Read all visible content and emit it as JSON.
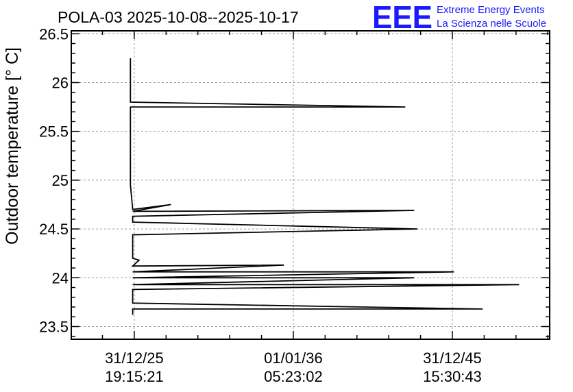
{
  "title": "POLA-03 2025-10-08--2025-10-17",
  "logo": {
    "mark": "EEE",
    "line1": "Extreme Energy Events",
    "line2": "La Scienza nelle Scuole",
    "color": "#1a1aff"
  },
  "chart_data": {
    "type": "line",
    "title": "POLA-03 2025-10-08--2025-10-17",
    "ylabel": "Outdoor temperature [° C]",
    "xlabel": "",
    "ylim": [
      23.37,
      26.53
    ],
    "xlim": [
      -1.98,
      13.06
    ],
    "yticks": [
      23.5,
      24,
      24.5,
      25,
      25.5,
      26,
      26.5
    ],
    "ytick_labels": [
      "23.5",
      "24",
      "24.5",
      "25",
      "25.5",
      "26",
      "26.5"
    ],
    "xticks": [
      0,
      5,
      10
    ],
    "xtick_labels": [
      [
        "31/12/25",
        "19:15:21"
      ],
      [
        "01/01/36",
        "05:23:02"
      ],
      [
        "31/12/45",
        "15:30:43"
      ]
    ],
    "grid": true,
    "series": [
      {
        "color": "#000000",
        "points": [
          [
            -0.12,
            26.25
          ],
          [
            -0.12,
            25.8
          ],
          [
            8.52,
            25.75
          ],
          [
            -0.12,
            25.75
          ],
          [
            -0.12,
            24.95
          ],
          [
            -0.05,
            24.7
          ],
          [
            1.15,
            24.75
          ],
          [
            -0.05,
            24.68
          ],
          [
            8.8,
            24.69
          ],
          [
            -0.05,
            24.63
          ],
          [
            -0.05,
            24.57
          ],
          [
            8.9,
            24.5
          ],
          [
            -0.05,
            24.44
          ],
          [
            -0.05,
            24.2
          ],
          [
            0.15,
            24.18
          ],
          [
            -0.05,
            24.12
          ],
          [
            4.7,
            24.13
          ],
          [
            -0.05,
            24.06
          ],
          [
            10.05,
            24.06
          ],
          [
            -0.05,
            24.0
          ],
          [
            8.8,
            24.0
          ],
          [
            -0.05,
            23.93
          ],
          [
            12.1,
            23.93
          ],
          [
            -0.05,
            23.88
          ],
          [
            -0.05,
            23.74
          ],
          [
            10.95,
            23.68
          ],
          [
            -0.05,
            23.68
          ],
          [
            -0.05,
            23.62
          ]
        ]
      }
    ]
  }
}
